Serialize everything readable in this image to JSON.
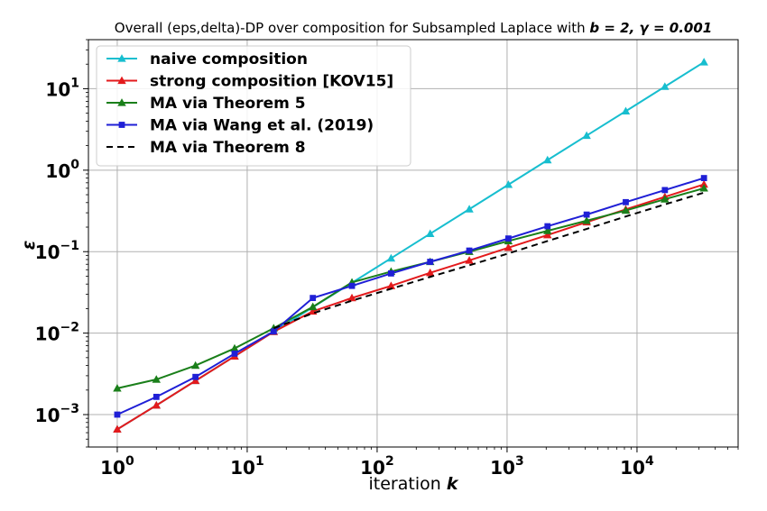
{
  "chart_data": {
    "type": "line",
    "title_main": "Overall (eps,delta)-DP over composition for Subsampled Laplace with ",
    "title_params": "b = 2, γ = 0.001",
    "xlabel": "iteration ",
    "xlabel_var": "k",
    "ylabel": "ε",
    "xscale": "log",
    "yscale": "log",
    "xlim": [
      0.6,
      60000
    ],
    "ylim": [
      0.0004,
      40
    ],
    "grid": true,
    "legend_position": "upper left",
    "x": [
      1,
      2,
      4,
      8,
      16,
      32,
      64,
      128,
      256,
      512,
      1024,
      2048,
      4096,
      8192,
      16384,
      32768
    ],
    "xticks": [
      {
        "value": 1,
        "base": "10",
        "exp": "0"
      },
      {
        "value": 10,
        "base": "10",
        "exp": "1"
      },
      {
        "value": 100,
        "base": "10",
        "exp": "2"
      },
      {
        "value": 1000,
        "base": "10",
        "exp": "3"
      },
      {
        "value": 10000,
        "base": "10",
        "exp": "4"
      }
    ],
    "yticks": [
      {
        "value": 0.001,
        "base": "10",
        "exp": "−3"
      },
      {
        "value": 0.01,
        "base": "10",
        "exp": "−2"
      },
      {
        "value": 0.1,
        "base": "10",
        "exp": "−1"
      },
      {
        "value": 1,
        "base": "10",
        "exp": "0"
      },
      {
        "value": 10,
        "base": "10",
        "exp": "1"
      }
    ],
    "series": [
      {
        "name": "naive composition",
        "color": "#17becf",
        "marker": "triangle",
        "dash": "",
        "values": [
          0.00066,
          0.0013,
          0.0026,
          0.0052,
          0.0104,
          0.0208,
          0.0415,
          0.083,
          0.166,
          0.332,
          0.664,
          1.33,
          2.66,
          5.3,
          10.6,
          21.2
        ]
      },
      {
        "name": "strong composition [KOV15]",
        "color": "#e31a1c",
        "marker": "triangle",
        "dash": "",
        "values": [
          0.00066,
          0.0013,
          0.0026,
          0.0052,
          0.0104,
          0.0185,
          0.027,
          0.038,
          0.055,
          0.078,
          0.112,
          0.16,
          0.23,
          0.33,
          0.47,
          0.67
        ]
      },
      {
        "name": "MA via Theorem 5",
        "color": "#1a7f1a",
        "marker": "triangle",
        "dash": "",
        "values": [
          0.0021,
          0.0027,
          0.004,
          0.0065,
          0.0115,
          0.021,
          0.042,
          0.057,
          0.075,
          0.1,
          0.135,
          0.18,
          0.24,
          0.32,
          0.44,
          0.6
        ]
      },
      {
        "name": "MA via Wang et al. (2019)",
        "color": "#1f1fd6",
        "marker": "square",
        "dash": "",
        "values": [
          0.001,
          0.00165,
          0.0029,
          0.0056,
          0.0105,
          0.027,
          0.038,
          0.054,
          0.075,
          0.103,
          0.145,
          0.205,
          0.285,
          0.405,
          0.57,
          0.8
        ]
      },
      {
        "name": "MA via Theorem 8",
        "color": "#000000",
        "marker": "none",
        "dash": "7,5",
        "values": [
          null,
          null,
          null,
          null,
          0.0115,
          0.0175,
          0.025,
          0.035,
          0.049,
          0.068,
          0.095,
          0.135,
          0.19,
          0.27,
          0.38,
          0.53
        ]
      }
    ]
  }
}
